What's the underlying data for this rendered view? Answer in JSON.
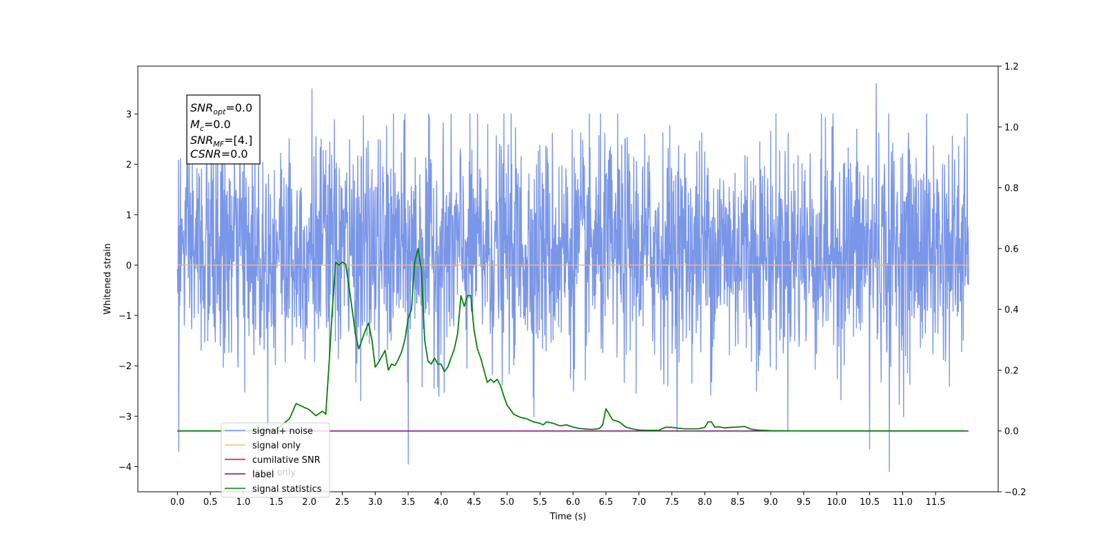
{
  "chart_data": {
    "type": "line",
    "xlabel": "Time (s)",
    "ylabel": "Whitened strain",
    "xlim": [
      -0.6,
      12.45
    ],
    "ylim": [
      -4.5,
      3.95
    ],
    "y2lim": [
      -0.2,
      1.2
    ],
    "grid": false,
    "x_ticks": [
      "0.0",
      "0.5",
      "1.0",
      "1.5",
      "2.0",
      "2.5",
      "3.0",
      "3.5",
      "4.0",
      "4.5",
      "5.0",
      "5.5",
      "6.0",
      "6.5",
      "7.0",
      "7.5",
      "8.0",
      "8.5",
      "9.0",
      "9.5",
      "10.0",
      "10.5",
      "11.0",
      "11.5"
    ],
    "y_ticks": [
      "3",
      "2",
      "1",
      "0",
      "−1",
      "−2",
      "−3",
      "−4"
    ],
    "y2_ticks": [
      "1.2",
      "1.0",
      "0.8",
      "0.6",
      "0.4",
      "0.2",
      "0.0",
      "−0.2"
    ],
    "legend": {
      "placement": "lower-left",
      "entries": [
        "signal+ noise",
        "signal only",
        "cumilative SNR",
        "label",
        "signal statistics"
      ],
      "overlapped_text": "label only"
    },
    "annotation": {
      "snr_opt": {
        "name": "SNR",
        "sub": "opt",
        "value": "=0.0"
      },
      "mc": {
        "name": "M",
        "sub": "c",
        "value": "=0.0"
      },
      "snr_mf": {
        "name": "SNR",
        "sub": "MF",
        "value": "=[4.]"
      },
      "csnr": {
        "name": "CSNR",
        "value": "=0.0"
      }
    },
    "series": [
      {
        "name": "signal+ noise",
        "axis": "left",
        "color": "#7a96e8",
        "description": "noise trace, 0 to 12 s, mean 0.3, std 1.1, peaks to 3.6 and -4.1",
        "t_start": 0.0,
        "t_end": 12.0,
        "samples": 2400,
        "mean": 0.3,
        "std": 1.1,
        "peaks": [
          [
            2.04,
            3.5
          ],
          [
            10.6,
            3.6
          ],
          [
            3.5,
            -3.95
          ],
          [
            10.8,
            -4.1
          ],
          [
            0.02,
            -3.7
          ],
          [
            10.5,
            -3.65
          ]
        ]
      },
      {
        "name": "signal only",
        "axis": "left",
        "color": "#f5b870",
        "x": [
          0.0,
          12.0
        ],
        "y": [
          0.0,
          0.0
        ]
      },
      {
        "name": "label",
        "axis": "right",
        "color": "#800080",
        "x": [
          0.0,
          12.0
        ],
        "y": [
          0.0,
          0.0
        ]
      },
      {
        "name": "signal statistics",
        "axis": "right",
        "color": "#008000",
        "x": [
          0.0,
          1.0,
          1.5,
          1.7,
          1.8,
          1.85,
          1.9,
          2.0,
          2.1,
          2.2,
          2.25,
          2.3,
          2.35,
          2.4,
          2.45,
          2.5,
          2.55,
          2.6,
          2.65,
          2.7,
          2.75,
          2.8,
          2.85,
          2.9,
          2.95,
          3.0,
          3.05,
          3.1,
          3.15,
          3.2,
          3.25,
          3.3,
          3.35,
          3.4,
          3.45,
          3.5,
          3.55,
          3.6,
          3.65,
          3.7,
          3.75,
          3.8,
          3.85,
          3.9,
          3.95,
          4.0,
          4.05,
          4.1,
          4.15,
          4.2,
          4.25,
          4.3,
          4.35,
          4.4,
          4.45,
          4.5,
          4.55,
          4.6,
          4.65,
          4.7,
          4.75,
          4.8,
          4.85,
          4.9,
          4.95,
          5.0,
          5.1,
          5.2,
          5.3,
          5.4,
          5.5,
          5.55,
          5.6,
          5.7,
          5.8,
          5.9,
          6.0,
          6.1,
          6.2,
          6.3,
          6.4,
          6.45,
          6.5,
          6.55,
          6.6,
          6.7,
          6.8,
          6.9,
          7.0,
          7.1,
          7.3,
          7.4,
          7.5,
          7.6,
          7.7,
          7.9,
          8.0,
          8.05,
          8.1,
          8.15,
          8.2,
          8.3,
          8.4,
          8.5,
          8.6,
          8.7,
          8.8,
          9.0,
          9.5,
          10.0,
          11.0,
          11.95
        ],
        "y": [
          0.0,
          0.0,
          0.005,
          0.04,
          0.09,
          0.085,
          0.08,
          0.07,
          0.05,
          0.065,
          0.055,
          0.22,
          0.4,
          0.555,
          0.545,
          0.555,
          0.55,
          0.48,
          0.4,
          0.32,
          0.27,
          0.3,
          0.33,
          0.355,
          0.3,
          0.21,
          0.225,
          0.245,
          0.265,
          0.2,
          0.22,
          0.215,
          0.235,
          0.26,
          0.3,
          0.37,
          0.4,
          0.555,
          0.6,
          0.53,
          0.3,
          0.23,
          0.22,
          0.24,
          0.22,
          0.22,
          0.195,
          0.21,
          0.24,
          0.27,
          0.32,
          0.445,
          0.41,
          0.445,
          0.445,
          0.33,
          0.27,
          0.24,
          0.2,
          0.16,
          0.17,
          0.16,
          0.17,
          0.15,
          0.115,
          0.085,
          0.055,
          0.045,
          0.04,
          0.03,
          0.025,
          0.02,
          0.03,
          0.025,
          0.017,
          0.02,
          0.013,
          0.008,
          0.006,
          0.005,
          0.008,
          0.02,
          0.073,
          0.055,
          0.037,
          0.03,
          0.013,
          0.007,
          0.003,
          0.002,
          0.002,
          0.012,
          0.012,
          0.009,
          0.007,
          0.007,
          0.012,
          0.03,
          0.03,
          0.012,
          0.014,
          0.01,
          0.012,
          0.013,
          0.015,
          0.006,
          0.003,
          0.001,
          0.0,
          0.0,
          0.0,
          0.0
        ]
      }
    ]
  },
  "colors": {
    "signal_noise": "#7a96e8",
    "signal_only": "#f5b870",
    "cumilative_snr": "#ff0000",
    "label": "#800080",
    "signal_statistics": "#008000"
  }
}
